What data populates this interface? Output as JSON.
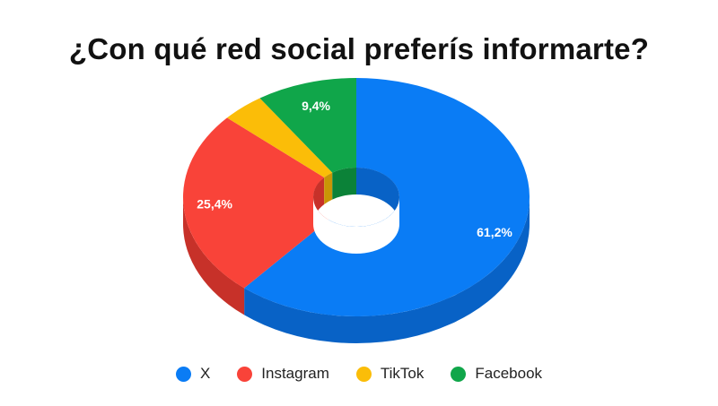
{
  "chart_data": {
    "type": "pie",
    "variant": "3d-donut",
    "title": "¿Con qué red social preferís informarte?",
    "categories": [
      "X",
      "Instagram",
      "TikTok",
      "Facebook"
    ],
    "values": [
      61.2,
      25.4,
      4.0,
      9.4
    ],
    "data_labels": [
      "61,2%",
      "25,4%",
      "",
      "9,4%"
    ],
    "colors": [
      "#0a7cf5",
      "#f94339",
      "#fbbd08",
      "#10a64a"
    ],
    "side_colors": [
      "#0862c6",
      "#c73129",
      "#c99506",
      "#0b8238"
    ],
    "legend": {
      "position": "bottom",
      "entries": [
        "X",
        "Instagram",
        "TikTok",
        "Facebook"
      ]
    }
  }
}
